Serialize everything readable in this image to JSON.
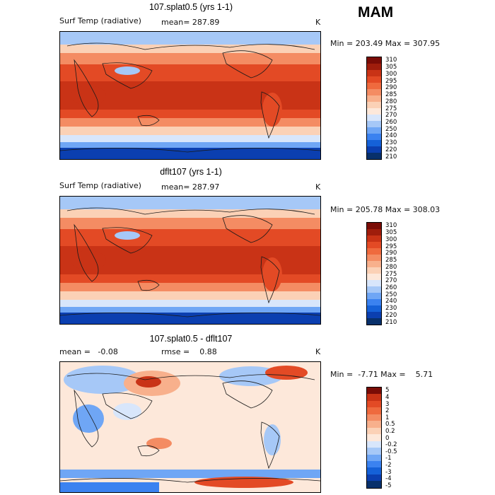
{
  "season": "MAM",
  "colors": {
    "temp_scale": [
      "#08306b",
      "#0b3fb0",
      "#1561d8",
      "#3b82f0",
      "#6fa6f5",
      "#a6c8f7",
      "#d8e6fb",
      "#fde8da",
      "#fbd1b6",
      "#f8b08c",
      "#f48c63",
      "#ef6a3e",
      "#e34a25",
      "#c93316",
      "#9f1d0c",
      "#7a0c06"
    ],
    "diff_scale": [
      "#08306b",
      "#0b3fb0",
      "#1561d8",
      "#3b82f0",
      "#6fa6f5",
      "#a6c8f7",
      "#d8e6fb",
      "#fde8da",
      "#fbd1b6",
      "#f8b08c",
      "#f48c63",
      "#ef6a3e",
      "#e34a25",
      "#c93316",
      "#7a0c06"
    ],
    "land": "#1a1a1a"
  },
  "panels": [
    {
      "title": "107.splat0.5 (yrs 1-1)",
      "left_label": "Surf Temp (radiative)",
      "mean_text": "mean= 287.89",
      "units": "K",
      "minmax": "Min = 203.49 Max = 307.95"
    },
    {
      "title": "dflt107 (yrs 1-1)",
      "left_label": "Surf Temp (radiative)",
      "mean_text": "mean= 287.97",
      "units": "K",
      "minmax": "Min = 205.78 Max = 308.03"
    },
    {
      "title": "107.splat0.5 - dflt107",
      "left_label": "mean =   -0.08",
      "mean_text": "rmse =    0.88",
      "units": "K",
      "minmax": "Min =  -7.71 Max =    5.71"
    }
  ],
  "chart_data": [
    {
      "type": "heatmap",
      "title": "107.splat0.5 (yrs 1-1)",
      "variable": "Surf Temp (radiative)",
      "units": "K",
      "mean": 287.89,
      "min": 203.49,
      "max": 307.95,
      "colorbar_levels": [
        "310",
        "305",
        "300",
        "295",
        "290",
        "285",
        "280",
        "275",
        "270",
        "260",
        "250",
        "240",
        "230",
        "220",
        "210"
      ]
    },
    {
      "type": "heatmap",
      "title": "dflt107 (yrs 1-1)",
      "variable": "Surf Temp (radiative)",
      "units": "K",
      "mean": 287.97,
      "min": 205.78,
      "max": 308.03,
      "colorbar_levels": [
        "310",
        "305",
        "300",
        "295",
        "290",
        "285",
        "280",
        "275",
        "270",
        "260",
        "250",
        "240",
        "230",
        "220",
        "210"
      ]
    },
    {
      "type": "heatmap",
      "title": "107.splat0.5 - dflt107",
      "units": "K",
      "mean": -0.08,
      "rmse": 0.88,
      "min": -7.71,
      "max": 5.71,
      "colorbar_levels": [
        "5",
        "4",
        "3",
        "2",
        "1",
        "0.5",
        "0.2",
        "0",
        "-0.2",
        "-0.5",
        "-1",
        "-2",
        "-3",
        "-4",
        "-5"
      ]
    }
  ]
}
